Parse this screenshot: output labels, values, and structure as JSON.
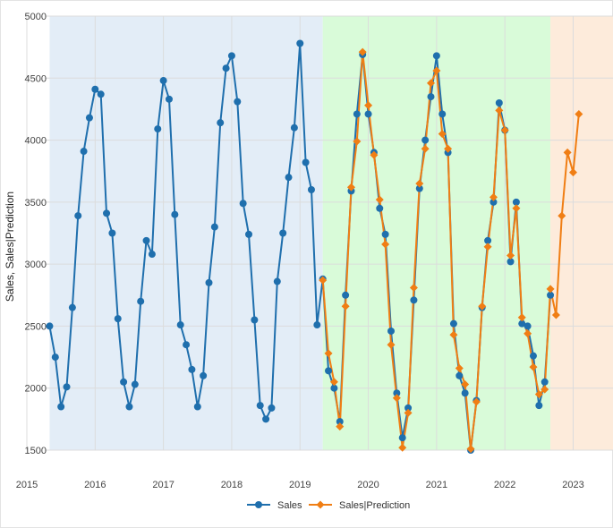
{
  "chart_data": {
    "type": "line",
    "ylabel": "Sales, Sales|Prediction",
    "xlim": [
      "2015-01-01",
      "2023-08-01"
    ],
    "ylim": [
      1500,
      5000
    ],
    "xticks": [
      "2015",
      "2016",
      "2017",
      "2018",
      "2019",
      "2020",
      "2021",
      "2022",
      "2023"
    ],
    "yticks": [
      "1500",
      "2000",
      "2500",
      "3000",
      "3500",
      "4000",
      "4500",
      "5000"
    ],
    "grid": true,
    "legend_position": "bottom",
    "regions": [
      {
        "start": "2015-05-01",
        "end": "2019-05-01",
        "color": "#e3edf7"
      },
      {
        "start": "2019-05-01",
        "end": "2022-09-01",
        "color": "#d9fbd9"
      },
      {
        "start": "2022-09-01",
        "end": "2023-08-01",
        "color": "#fdebdb"
      }
    ],
    "series": [
      {
        "name": "Sales",
        "color": "#1f6fad",
        "marker": "circle",
        "x": [
          "2015-05",
          "2015-06",
          "2015-07",
          "2015-08",
          "2015-09",
          "2015-10",
          "2015-11",
          "2015-12",
          "2016-01",
          "2016-02",
          "2016-03",
          "2016-04",
          "2016-05",
          "2016-06",
          "2016-07",
          "2016-08",
          "2016-09",
          "2016-10",
          "2016-11",
          "2016-12",
          "2017-01",
          "2017-02",
          "2017-03",
          "2017-04",
          "2017-05",
          "2017-06",
          "2017-07",
          "2017-08",
          "2017-09",
          "2017-10",
          "2017-11",
          "2017-12",
          "2018-01",
          "2018-02",
          "2018-03",
          "2018-04",
          "2018-05",
          "2018-06",
          "2018-07",
          "2018-08",
          "2018-09",
          "2018-10",
          "2018-11",
          "2018-12",
          "2019-01",
          "2019-02",
          "2019-03",
          "2019-04",
          "2019-05",
          "2019-06",
          "2019-07",
          "2019-08",
          "2019-09",
          "2019-10",
          "2019-11",
          "2019-12",
          "2020-01",
          "2020-02",
          "2020-03",
          "2020-04",
          "2020-05",
          "2020-06",
          "2020-07",
          "2020-08",
          "2020-09",
          "2020-10",
          "2020-11",
          "2020-12",
          "2021-01",
          "2021-02",
          "2021-03",
          "2021-04",
          "2021-05",
          "2021-06",
          "2021-07",
          "2021-08",
          "2021-09",
          "2021-10",
          "2021-11",
          "2021-12",
          "2022-01",
          "2022-02",
          "2022-03",
          "2022-04",
          "2022-05",
          "2022-06",
          "2022-07",
          "2022-08",
          "2022-09"
        ],
        "values": [
          2500,
          2250,
          1850,
          2010,
          2650,
          3390,
          3910,
          4180,
          4410,
          4370,
          3410,
          3250,
          2560,
          2050,
          1850,
          2030,
          2700,
          3190,
          3080,
          4090,
          4480,
          4330,
          3400,
          2510,
          2350,
          2150,
          1850,
          2100,
          2850,
          3300,
          4140,
          4580,
          4680,
          4310,
          3490,
          3240,
          2550,
          1860,
          1750,
          1840,
          2860,
          3250,
          3700,
          4100,
          4780,
          3820,
          3600,
          2510,
          2880,
          2140,
          2000,
          1730,
          2750,
          3590,
          4210,
          4690,
          4210,
          3900,
          3450,
          3240,
          2460,
          1960,
          1600,
          1840,
          2710,
          3610,
          4000,
          4350,
          4680,
          4210,
          3900,
          2520,
          2100,
          1960,
          1500,
          1900,
          2650,
          3190,
          3500,
          4300,
          4080,
          3020,
          3500,
          2520,
          2500,
          2260,
          1860,
          2050,
          2750
        ]
      },
      {
        "name": "Sales|Prediction",
        "color": "#f07e14",
        "marker": "diamond",
        "x": [
          "2019-05",
          "2019-06",
          "2019-07",
          "2019-08",
          "2019-09",
          "2019-10",
          "2019-11",
          "2019-12",
          "2020-01",
          "2020-02",
          "2020-03",
          "2020-04",
          "2020-05",
          "2020-06",
          "2020-07",
          "2020-08",
          "2020-09",
          "2020-10",
          "2020-11",
          "2020-12",
          "2021-01",
          "2021-02",
          "2021-03",
          "2021-04",
          "2021-05",
          "2021-06",
          "2021-07",
          "2021-08",
          "2021-09",
          "2021-10",
          "2021-11",
          "2021-12",
          "2022-01",
          "2022-02",
          "2022-03",
          "2022-04",
          "2022-05",
          "2022-06",
          "2022-07",
          "2022-08",
          "2022-09",
          "2022-10",
          "2022-11",
          "2022-12",
          "2023-01",
          "2023-02"
        ],
        "values": [
          2870,
          2280,
          2050,
          1690,
          2660,
          3620,
          3990,
          4710,
          4280,
          3880,
          3520,
          3160,
          2350,
          1920,
          1520,
          1800,
          2810,
          3650,
          3930,
          4460,
          4560,
          4050,
          3930,
          2430,
          2160,
          2030,
          1510,
          1890,
          2660,
          3140,
          3540,
          4240,
          4080,
          3070,
          3450,
          2570,
          2440,
          2170,
          1950,
          1990,
          2800,
          2590,
          3390,
          3900,
          3740,
          4210
        ]
      }
    ]
  }
}
